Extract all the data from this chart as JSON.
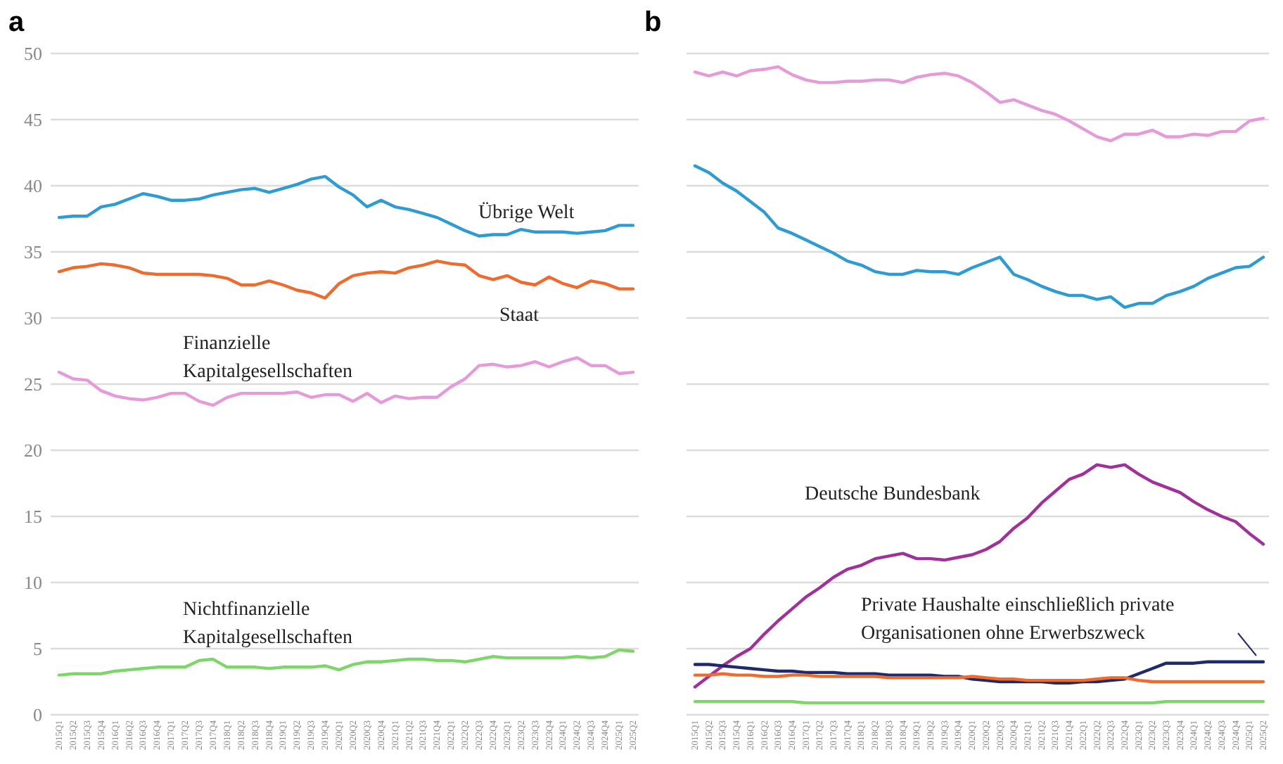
{
  "chart_data": [
    {
      "type": "line",
      "title": "a",
      "categories": [
        "2015Q1",
        "2015Q2",
        "2015Q3",
        "2015Q4",
        "2016Q1",
        "2016Q2",
        "2016Q3",
        "2016Q4",
        "2017Q1",
        "2017Q2",
        "2017Q3",
        "2017Q4",
        "2018Q1",
        "2018Q2",
        "2018Q3",
        "2018Q4",
        "2019Q1",
        "2019Q2",
        "2019Q3",
        "2019Q4",
        "2020Q1",
        "2020Q2",
        "2020Q3",
        "2020Q4",
        "2021Q1",
        "2021Q2",
        "2021Q3",
        "2021Q4",
        "2022Q1",
        "2022Q2",
        "2022Q3",
        "2022Q4",
        "2023Q1",
        "2023Q2",
        "2023Q3",
        "2023Q4",
        "2024Q1",
        "2024Q2",
        "2024Q3",
        "2024Q4",
        "2025Q1",
        "2025Q2"
      ],
      "series": [
        {
          "name": "Übrige Welt",
          "color": "#2e9bd2",
          "values": [
            37.6,
            37.7,
            37.7,
            38.4,
            38.6,
            39.0,
            39.4,
            39.2,
            38.9,
            38.9,
            39.0,
            39.3,
            39.5,
            39.7,
            39.8,
            39.5,
            39.8,
            40.1,
            40.5,
            40.7,
            39.9,
            39.3,
            38.4,
            38.9,
            38.4,
            38.2,
            37.9,
            37.6,
            37.1,
            36.6,
            36.2,
            36.3,
            36.3,
            36.7,
            36.5,
            36.5,
            36.5,
            36.4,
            36.5,
            36.6,
            37.0,
            37.0
          ]
        },
        {
          "name": "Staat",
          "color": "#ee6b2d",
          "values": [
            33.5,
            33.8,
            33.9,
            34.1,
            34.0,
            33.8,
            33.4,
            33.3,
            33.3,
            33.3,
            33.3,
            33.2,
            33.0,
            32.5,
            32.5,
            32.8,
            32.5,
            32.1,
            31.9,
            31.5,
            32.6,
            33.2,
            33.4,
            33.5,
            33.4,
            33.8,
            34.0,
            34.3,
            34.1,
            34.0,
            33.2,
            32.9,
            33.2,
            32.7,
            32.5,
            33.1,
            32.6,
            32.3,
            32.8,
            32.6,
            32.2,
            32.2
          ]
        },
        {
          "name": "Finanzielle Kapitalgesellschaften",
          "color": "#e59ad9",
          "values": [
            25.9,
            25.4,
            25.3,
            24.5,
            24.1,
            23.9,
            23.8,
            24.0,
            24.3,
            24.3,
            23.7,
            23.4,
            24.0,
            24.3,
            24.3,
            24.3,
            24.3,
            24.4,
            24.0,
            24.2,
            24.2,
            23.7,
            24.3,
            23.6,
            24.1,
            23.9,
            24.0,
            24.0,
            24.8,
            25.4,
            26.4,
            26.5,
            26.3,
            26.4,
            26.7,
            26.3,
            26.7,
            27.0,
            26.4,
            26.4,
            25.8,
            25.9
          ]
        },
        {
          "name": "Nichtfinanzielle Kapitalgesellschaften",
          "color": "#7ed66b",
          "values": [
            3.0,
            3.1,
            3.1,
            3.1,
            3.3,
            3.4,
            3.5,
            3.6,
            3.6,
            3.6,
            4.1,
            4.2,
            3.6,
            3.6,
            3.6,
            3.5,
            3.6,
            3.6,
            3.6,
            3.7,
            3.4,
            3.8,
            4.0,
            4.0,
            4.1,
            4.2,
            4.2,
            4.1,
            4.1,
            4.0,
            4.2,
            4.4,
            4.3,
            4.3,
            4.3,
            4.3,
            4.3,
            4.4,
            4.3,
            4.4,
            4.9,
            4.8
          ]
        }
      ],
      "ylim": [
        0,
        50
      ],
      "yticks": [
        0,
        5,
        10,
        15,
        20,
        25,
        30,
        35,
        40,
        45,
        50
      ],
      "grid": "y"
    },
    {
      "type": "line",
      "title": "b",
      "categories": [
        "2015Q1",
        "2015Q2",
        "2015Q3",
        "2015Q4",
        "2016Q1",
        "2016Q2",
        "2016Q3",
        "2016Q4",
        "2017Q1",
        "2017Q2",
        "2017Q3",
        "2017Q4",
        "2018Q1",
        "2018Q2",
        "2018Q3",
        "2018Q4",
        "2019Q1",
        "2019Q2",
        "2019Q3",
        "2019Q4",
        "2020Q1",
        "2020Q2",
        "2020Q3",
        "2020Q4",
        "2021Q1",
        "2021Q2",
        "2021Q3",
        "2021Q4",
        "2022Q1",
        "2022Q2",
        "2022Q3",
        "2022Q4",
        "2023Q1",
        "2023Q2",
        "2023Q3",
        "2023Q4",
        "2024Q1",
        "2024Q2",
        "2024Q3",
        "2024Q4",
        "2025Q1",
        "2025Q2"
      ],
      "series": [
        {
          "color": "#e59ad9",
          "values": [
            48.6,
            48.3,
            48.6,
            48.3,
            48.7,
            48.8,
            49.0,
            48.4,
            48.0,
            47.8,
            47.8,
            47.9,
            47.9,
            48.0,
            48.0,
            47.8,
            48.2,
            48.4,
            48.5,
            48.3,
            47.8,
            47.1,
            46.3,
            46.5,
            46.1,
            45.7,
            45.4,
            44.9,
            44.3,
            43.7,
            43.4,
            43.9,
            43.9,
            44.2,
            43.7,
            43.7,
            43.9,
            43.8,
            44.1,
            44.1,
            44.9,
            45.1
          ]
        },
        {
          "color": "#2e9bd2",
          "values": [
            41.5,
            41.0,
            40.2,
            39.6,
            38.8,
            38.0,
            36.8,
            36.4,
            35.9,
            35.4,
            34.9,
            34.3,
            34.0,
            33.5,
            33.3,
            33.3,
            33.6,
            33.5,
            33.5,
            33.3,
            33.8,
            34.2,
            34.6,
            33.3,
            32.9,
            32.4,
            32.0,
            31.7,
            31.7,
            31.4,
            31.6,
            30.8,
            31.1,
            31.1,
            31.7,
            32.0,
            32.4,
            33.0,
            33.4,
            33.8,
            33.9,
            34.6
          ]
        },
        {
          "name": "Deutsche Bundesbank",
          "color": "#a0309a",
          "values": [
            2.1,
            2.9,
            3.7,
            4.4,
            5.0,
            6.1,
            7.1,
            8.0,
            8.9,
            9.6,
            10.4,
            11.0,
            11.3,
            11.8,
            12.0,
            12.2,
            11.8,
            11.8,
            11.7,
            11.9,
            12.1,
            12.5,
            13.1,
            14.1,
            14.9,
            16.0,
            16.9,
            17.8,
            18.2,
            18.9,
            18.7,
            18.9,
            18.2,
            17.6,
            17.2,
            16.8,
            16.1,
            15.5,
            15.0,
            14.6,
            13.7,
            12.9
          ]
        },
        {
          "name": "Private Haushalte einschließlich private Organisationen ohne Erwerbszweck",
          "color": "#1f2a6b",
          "values": [
            3.8,
            3.8,
            3.7,
            3.6,
            3.5,
            3.4,
            3.3,
            3.3,
            3.2,
            3.2,
            3.2,
            3.1,
            3.1,
            3.1,
            3.0,
            3.0,
            3.0,
            3.0,
            2.9,
            2.9,
            2.7,
            2.6,
            2.5,
            2.5,
            2.5,
            2.5,
            2.4,
            2.4,
            2.5,
            2.5,
            2.6,
            2.7,
            3.1,
            3.5,
            3.9,
            3.9,
            3.9,
            4.0,
            4.0,
            4.0,
            4.0,
            4.0
          ]
        },
        {
          "color": "#ee6b2d",
          "values": [
            3.0,
            3.0,
            3.1,
            3.0,
            3.0,
            2.9,
            2.9,
            3.0,
            3.0,
            2.9,
            2.9,
            2.9,
            2.9,
            2.9,
            2.8,
            2.8,
            2.8,
            2.8,
            2.8,
            2.8,
            2.9,
            2.8,
            2.7,
            2.7,
            2.6,
            2.6,
            2.6,
            2.6,
            2.6,
            2.7,
            2.8,
            2.8,
            2.6,
            2.5,
            2.5,
            2.5,
            2.5,
            2.5,
            2.5,
            2.5,
            2.5,
            2.5
          ]
        },
        {
          "color": "#7ed66b",
          "values": [
            1.0,
            1.0,
            1.0,
            1.0,
            1.0,
            1.0,
            1.0,
            1.0,
            0.9,
            0.9,
            0.9,
            0.9,
            0.9,
            0.9,
            0.9,
            0.9,
            0.9,
            0.9,
            0.9,
            0.9,
            0.9,
            0.9,
            0.9,
            0.9,
            0.9,
            0.9,
            0.9,
            0.9,
            0.9,
            0.9,
            0.9,
            0.9,
            0.9,
            0.9,
            1.0,
            1.0,
            1.0,
            1.0,
            1.0,
            1.0,
            1.0,
            1.0
          ]
        }
      ],
      "ylim": [
        0,
        50
      ],
      "yticks": [
        0,
        5,
        10,
        15,
        20,
        25,
        30,
        35,
        40,
        45,
        50
      ],
      "grid": "y",
      "tick_labels": "x"
    }
  ]
}
